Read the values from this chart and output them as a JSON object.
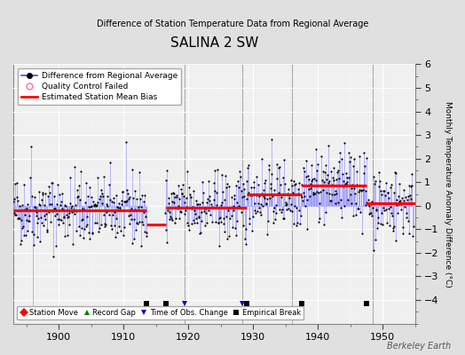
{
  "title": "SALINA 2 SW",
  "subtitle": "Difference of Station Temperature Data from Regional Average",
  "ylabel": "Monthly Temperature Anomaly Difference (°C)",
  "xlim": [
    1893,
    1955
  ],
  "ylim": [
    -5,
    6
  ],
  "yticks": [
    -4,
    -3,
    -2,
    -1,
    0,
    1,
    2,
    3,
    4,
    5,
    6
  ],
  "xticks": [
    1900,
    1910,
    1920,
    1930,
    1940,
    1950
  ],
  "fig_bg_color": "#e0e0e0",
  "plot_bg_color": "#f0f0f0",
  "grid_color": "#ffffff",
  "line_color": "#4444ff",
  "stem_color": "#8888ff",
  "dot_color": "#000000",
  "bias_color": "#ff0000",
  "vertical_line_color": "#aaaaaa",
  "vertical_lines": [
    1919.5,
    1928.3,
    1936.0,
    1948.5
  ],
  "empirical_breaks": [
    1913.5,
    1916.5,
    1929.0,
    1937.5,
    1947.5
  ],
  "time_obs_changes": [
    1919.5,
    1928.3
  ],
  "bias_segments": [
    {
      "x_start": 1893,
      "x_end": 1913.5,
      "bias": -0.2
    },
    {
      "x_start": 1913.5,
      "x_end": 1916.5,
      "bias": -0.8
    },
    {
      "x_start": 1916.5,
      "x_end": 1929.0,
      "bias": -0.1
    },
    {
      "x_start": 1929.0,
      "x_end": 1937.5,
      "bias": 0.5
    },
    {
      "x_start": 1937.5,
      "x_end": 1947.5,
      "bias": 0.85
    },
    {
      "x_start": 1947.5,
      "x_end": 1955,
      "bias": 0.1
    }
  ],
  "seed": 42,
  "berkeley_earth_text": "Berkeley Earth"
}
